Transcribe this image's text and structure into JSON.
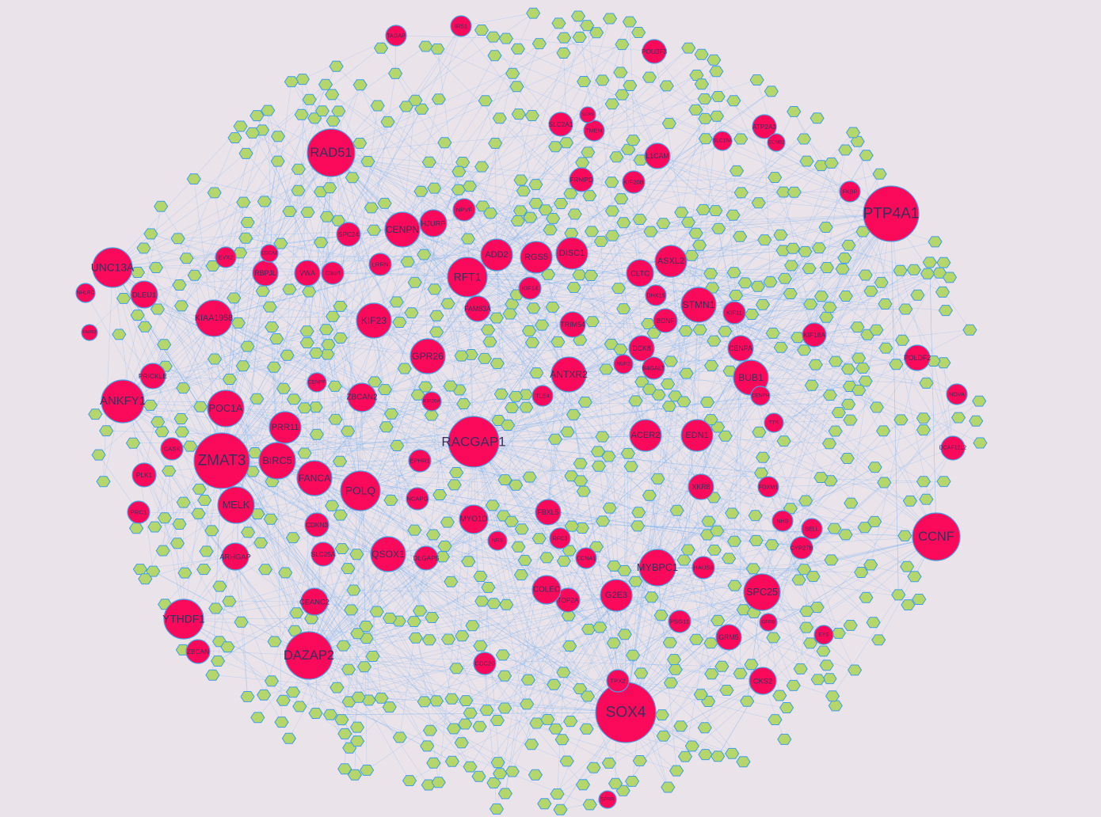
{
  "diagram": {
    "type": "network",
    "colors": {
      "background": "#ebe3ea",
      "gene_node": "#fb0a5c",
      "mirna_node": "#b4d66a",
      "node_border": "#4b9de2",
      "edge": "#5aa6f2"
    },
    "gene_node_shape": "circle",
    "mirna_node_shape": "hexagon"
  },
  "nodes": [
    {
      "label": "RAD51"
    },
    {
      "label": "PTP4A1"
    },
    {
      "label": "UNC13A"
    },
    {
      "label": "DLEU1"
    },
    {
      "label": "NHLRC"
    },
    {
      "label": "KIAA1958"
    },
    {
      "label": "FAM83"
    },
    {
      "label": "ANKFY1"
    },
    {
      "label": "PRICKLE"
    },
    {
      "label": "POC1A"
    },
    {
      "label": "ZMAT3"
    },
    {
      "label": "PRR11"
    },
    {
      "label": "BIRC5"
    },
    {
      "label": "FANCA"
    },
    {
      "label": "POLQ"
    },
    {
      "label": "MELK"
    },
    {
      "label": "CASK"
    },
    {
      "label": "PLK1"
    },
    {
      "label": "PRC1"
    },
    {
      "label": "ARHGAP"
    },
    {
      "label": "CDKN3"
    },
    {
      "label": "SLC25A"
    },
    {
      "label": "QSOX1"
    },
    {
      "label": "DLGAP5"
    },
    {
      "label": "CEANC2"
    },
    {
      "label": "YTHDF1"
    },
    {
      "label": "ZBCAN"
    },
    {
      "label": "DAZAP2"
    },
    {
      "label": "KIF23"
    },
    {
      "label": "GPR26"
    },
    {
      "label": "ZBCAN2"
    },
    {
      "label": "CENPF"
    },
    {
      "label": "RACGAP1"
    },
    {
      "label": "KIF20A"
    },
    {
      "label": "EPHR1"
    },
    {
      "label": "NCAPG"
    },
    {
      "label": "MYO1D"
    },
    {
      "label": "CENPN"
    },
    {
      "label": "HJURP"
    },
    {
      "label": "SPC24"
    },
    {
      "label": "EVX2"
    },
    {
      "label": "RBPJL"
    },
    {
      "label": "VWA"
    },
    {
      "label": "CDCA8"
    },
    {
      "label": "C3orf"
    },
    {
      "label": "LRRN"
    },
    {
      "label": "RFT1"
    },
    {
      "label": "ADD2"
    },
    {
      "label": "RGS5"
    },
    {
      "label": "DISC1"
    },
    {
      "label": "NPVF"
    },
    {
      "label": "KIF14"
    },
    {
      "label": "FAM83A"
    },
    {
      "label": "TRIM54"
    },
    {
      "label": "KIF20B"
    },
    {
      "label": "L1CAM"
    },
    {
      "label": "FRMPD"
    },
    {
      "label": "SLC2A1"
    },
    {
      "label": "TMEM"
    },
    {
      "label": "ATP2A3"
    },
    {
      "label": "ASXL2"
    },
    {
      "label": "CLTC"
    },
    {
      "label": "STMN1"
    },
    {
      "label": "KIF11"
    },
    {
      "label": "BUB1"
    },
    {
      "label": "CENPA"
    },
    {
      "label": "DCK8"
    },
    {
      "label": "NUF2"
    },
    {
      "label": "B4GALT"
    },
    {
      "label": "ANTXR2"
    },
    {
      "label": "TLE4"
    },
    {
      "label": "ACER2"
    },
    {
      "label": "EDN1"
    },
    {
      "label": "XKR8"
    },
    {
      "label": "MYBPC1"
    },
    {
      "label": "SPC25"
    },
    {
      "label": "G2E3"
    },
    {
      "label": "TOP2A"
    },
    {
      "label": "COLEC"
    },
    {
      "label": "FBXL5"
    },
    {
      "label": "GRM5"
    },
    {
      "label": "CKS2"
    },
    {
      "label": "SOX4"
    },
    {
      "label": "CCNF"
    },
    {
      "label": "TTK"
    },
    {
      "label": "DHX15"
    },
    {
      "label": "BDNF"
    },
    {
      "label": "TAGAP"
    },
    {
      "label": "IRS1"
    },
    {
      "label": "POU3F3"
    },
    {
      "label": "CCNB2"
    },
    {
      "label": "HAUS8"
    },
    {
      "label": "PSG11"
    },
    {
      "label": "GFRB"
    },
    {
      "label": "EYS"
    },
    {
      "label": "CYP27B"
    },
    {
      "label": "SELL"
    },
    {
      "label": "NHS"
    },
    {
      "label": "FOXM1"
    },
    {
      "label": "CCNA1"
    },
    {
      "label": "RFC3"
    },
    {
      "label": "NRS"
    },
    {
      "label": "CDC20"
    },
    {
      "label": "POLDF2"
    },
    {
      "label": "DCAF12L2"
    },
    {
      "label": "NOVA"
    },
    {
      "label": "KIF18A"
    },
    {
      "label": "SLC19A"
    },
    {
      "label": "CENPH"
    },
    {
      "label": "TPX2"
    },
    {
      "label": "SOX9"
    },
    {
      "label": "FKBP"
    },
    {
      "label": "SPRR"
    }
  ]
}
